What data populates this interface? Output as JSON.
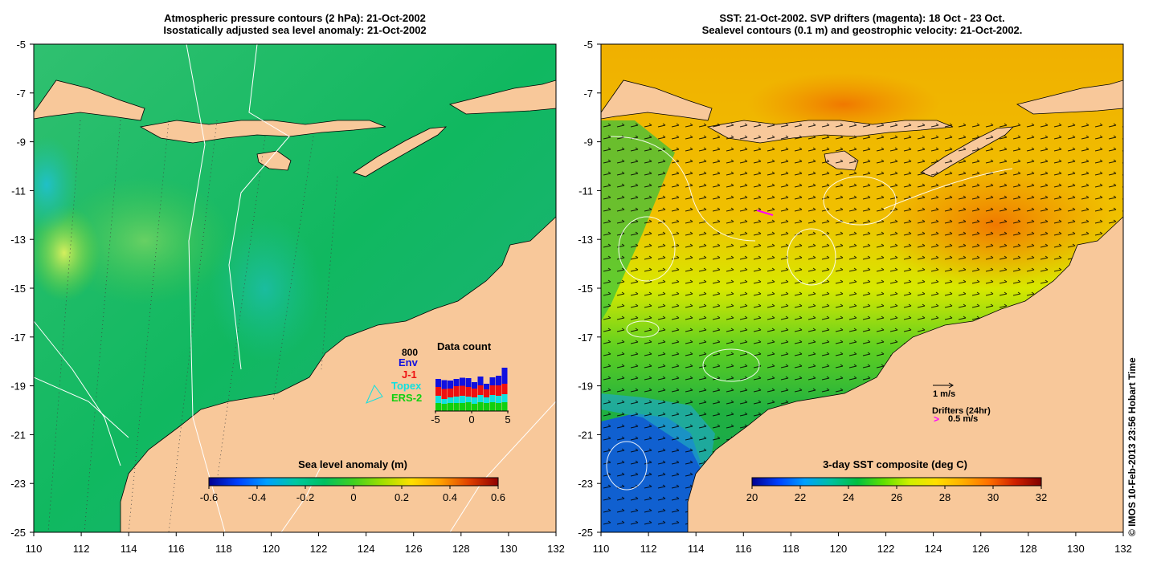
{
  "left_panel": {
    "title_line1": "Atmospheric pressure contours (2 hPa): 21-Oct-2002",
    "title_line2": "Isostatically adjusted sea level anomaly: 21-Oct-2002",
    "colorbar": {
      "label": "Sea level anomaly (m)",
      "ticks": [
        "-0.6",
        "-0.4",
        "-0.2",
        "0",
        "0.2",
        "0.4",
        "0.6"
      ]
    },
    "data_count": {
      "title": "Data count",
      "max_label": "800",
      "legend": [
        {
          "name": "Env",
          "color": "#1010e0"
        },
        {
          "name": "J-1",
          "color": "#ee1010"
        },
        {
          "name": "Topex",
          "color": "#10e0e0"
        },
        {
          "name": "ERS-2",
          "color": "#10d010"
        }
      ],
      "x_ticks": [
        "-5",
        "0",
        "5"
      ],
      "x_range": [
        -5,
        5
      ],
      "bars": [
        {
          "ers2": 20,
          "topex": 18,
          "j1": 22,
          "env": 20
        },
        {
          "ers2": 18,
          "topex": 12,
          "j1": 25,
          "env": 22
        },
        {
          "ers2": 20,
          "topex": 14,
          "j1": 22,
          "env": 20
        },
        {
          "ers2": 20,
          "topex": 16,
          "j1": 26,
          "env": 18
        },
        {
          "ers2": 20,
          "topex": 18,
          "j1": 25,
          "env": 20
        },
        {
          "ers2": 22,
          "topex": 14,
          "j1": 24,
          "env": 22
        },
        {
          "ers2": 18,
          "topex": 16,
          "j1": 22,
          "env": 16
        },
        {
          "ers2": 22,
          "topex": 18,
          "j1": 24,
          "env": 22
        },
        {
          "ers2": 20,
          "topex": 14,
          "j1": 20,
          "env": 14
        },
        {
          "ers2": 22,
          "topex": 18,
          "j1": 24,
          "env": 20
        },
        {
          "ers2": 20,
          "topex": 18,
          "j1": 26,
          "env": 24
        },
        {
          "ers2": 22,
          "topex": 20,
          "j1": 26,
          "env": 40
        }
      ]
    }
  },
  "right_panel": {
    "title_line1": "SST: 21-Oct-2002. SVP drifters (magenta): 18 Oct - 23 Oct.",
    "title_line2": "Sealevel contours (0.1 m) and geostrophic velocity: 21-Oct-2002.",
    "colorbar": {
      "label": "3-day SST composite (deg C)",
      "ticks": [
        "20",
        "22",
        "24",
        "26",
        "28",
        "30",
        "32"
      ]
    },
    "velocity_scale_label": "1 m/s",
    "drifters_label": "Drifters (24hr)",
    "drifter_speed_label": "0.5 m/s",
    "drifter_marker": ">"
  },
  "axes": {
    "lat_ticks": [
      "-5",
      "-7",
      "-9",
      "-11",
      "-13",
      "-15",
      "-17",
      "-19",
      "-21",
      "-23",
      "-25"
    ],
    "lon_ticks": [
      "110",
      "112",
      "114",
      "116",
      "118",
      "120",
      "122",
      "124",
      "126",
      "128",
      "130",
      "132"
    ],
    "lon_range": [
      110,
      132
    ],
    "lat_range": [
      -25,
      -5
    ]
  },
  "colors": {
    "land": "#f8c89a",
    "sla_ramp": [
      "#000090",
      "#0040ff",
      "#00a0ff",
      "#00c8a0",
      "#00c060",
      "#40d020",
      "#a0e000",
      "#ffe000",
      "#ffa000",
      "#e04000",
      "#900000"
    ],
    "sst_ramp": [
      "#000090",
      "#0040ff",
      "#00a0ff",
      "#00c0a0",
      "#00c040",
      "#60e000",
      "#d0f000",
      "#ffe000",
      "#ffb000",
      "#ff7000",
      "#d02000",
      "#800000"
    ]
  },
  "credit": "© IMOS 10-Feb-2013 23:56 Hobart Time"
}
